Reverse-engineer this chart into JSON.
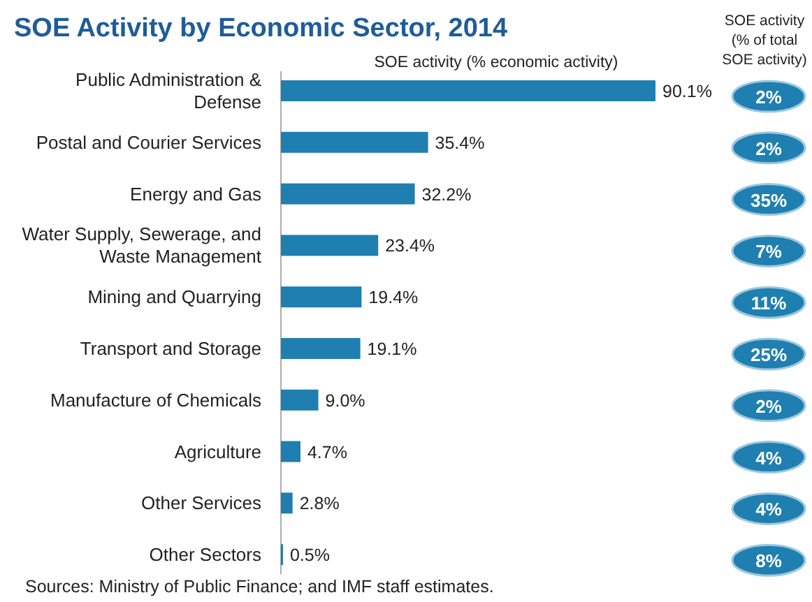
{
  "chart_data": [
    {
      "type": "bar",
      "orientation": "horizontal",
      "title": "SOE Activity by Economic Sector, 2014",
      "xlabel": "SOE activity (% economic activity)",
      "categories": [
        "Public Administration & Defense",
        "Postal and Courier Services",
        "Energy and Gas",
        "Water Supply, Sewerage, and Waste Management",
        "Mining and Quarrying",
        "Transport and Storage",
        "Manufacture of Chemicals",
        "Agriculture",
        "Other Services",
        "Other Sectors"
      ],
      "values": [
        90.1,
        35.4,
        32.2,
        23.4,
        19.4,
        19.1,
        9.0,
        4.7,
        2.8,
        0.5
      ],
      "value_labels": [
        "90.1%",
        "35.4%",
        "32.2%",
        "23.4%",
        "19.4%",
        "19.1%",
        "9.0%",
        "4.7%",
        "2.8%",
        "0.5%"
      ],
      "color": "#1f7fb0",
      "annotations": [
        "Sources: Ministry of Public Finance; and IMF staff estimates."
      ]
    },
    {
      "type": "other",
      "title": "SOE activity (% of total SOE activity)",
      "values": [
        2,
        2,
        35,
        7,
        11,
        25,
        2,
        4,
        4,
        8
      ],
      "value_labels": [
        "2%",
        "2%",
        "35%",
        "7%",
        "11%",
        "25%",
        "2%",
        "4%",
        "4%",
        "8%"
      ],
      "color": "#1f7fb0"
    }
  ]
}
